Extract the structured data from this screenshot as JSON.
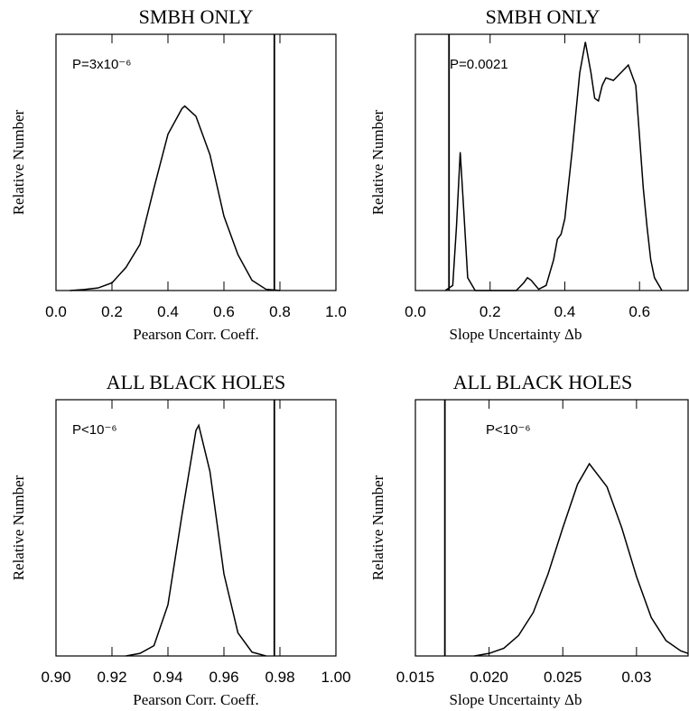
{
  "chart_data": [
    {
      "type": "line",
      "title": "SMBH ONLY",
      "xlabel": "Pearson Corr. Coeff.",
      "ylabel": "Relative Number",
      "annotation": "P=3x10⁻⁶",
      "x": [
        0.05,
        0.1,
        0.15,
        0.2,
        0.25,
        0.3,
        0.35,
        0.4,
        0.45,
        0.46,
        0.5,
        0.55,
        0.6,
        0.65,
        0.7,
        0.75,
        0.8
      ],
      "values": [
        0,
        0.004,
        0.01,
        0.03,
        0.09,
        0.18,
        0.4,
        0.61,
        0.71,
        0.72,
        0.68,
        0.53,
        0.29,
        0.14,
        0.04,
        0.005,
        0
      ],
      "color": "#000000",
      "vline": 0.78,
      "xlim": [
        0,
        1.0
      ],
      "ylim": [
        0,
        1
      ],
      "xticks": [
        {
          "value": 0,
          "label": "0.0"
        },
        0.2,
        0.4,
        0.6,
        0.8,
        {
          "value": 1,
          "label": "1.0"
        }
      ]
    },
    {
      "type": "line",
      "title": "SMBH ONLY",
      "xlabel": "Slope Uncertainty Δb",
      "ylabel": "Relative Number",
      "annotation": "P=0.0021",
      "x": [
        0.08,
        0.1,
        0.11,
        0.12,
        0.13,
        0.14,
        0.16,
        0.27,
        0.29,
        0.3,
        0.31,
        0.33,
        0.35,
        0.37,
        0.38,
        0.39,
        0.4,
        0.42,
        0.44,
        0.455,
        0.47,
        0.48,
        0.49,
        0.5,
        0.51,
        0.53,
        0.55,
        0.57,
        0.59,
        0.6,
        0.61,
        0.62,
        0.63,
        0.64,
        0.66
      ],
      "values": [
        0,
        0.02,
        0.25,
        0.54,
        0.3,
        0.05,
        0,
        0,
        0.03,
        0.05,
        0.04,
        0.005,
        0.02,
        0.12,
        0.2,
        0.22,
        0.28,
        0.55,
        0.85,
        0.97,
        0.85,
        0.75,
        0.74,
        0.8,
        0.83,
        0.82,
        0.85,
        0.88,
        0.8,
        0.6,
        0.4,
        0.25,
        0.12,
        0.05,
        0
      ],
      "color": "#000000",
      "vline": 0.09,
      "xlim": [
        0,
        0.73
      ],
      "ylim": [
        0,
        1
      ],
      "xticks": [
        {
          "value": 0,
          "label": "0.0"
        },
        0.2,
        0.4,
        0.6
      ]
    },
    {
      "type": "line",
      "title": "ALL BLACK HOLES",
      "xlabel": "Pearson Corr. Coeff.",
      "ylabel": "Relative Number",
      "annotation": "P<10⁻⁶",
      "x": [
        0.925,
        0.93,
        0.935,
        0.94,
        0.945,
        0.95,
        0.951,
        0.955,
        0.96,
        0.965,
        0.97,
        0.975
      ],
      "values": [
        0,
        0.01,
        0.04,
        0.2,
        0.55,
        0.88,
        0.9,
        0.72,
        0.32,
        0.09,
        0.015,
        0
      ],
      "color": "#000000",
      "vline": 0.978,
      "xlim": [
        0.9,
        1.0
      ],
      "ylim": [
        0,
        1
      ],
      "xticks": [
        {
          "value": 0.9,
          "label": "0.90"
        },
        0.92,
        0.94,
        0.96,
        0.98,
        {
          "value": 1,
          "label": "1.00"
        }
      ]
    },
    {
      "type": "line",
      "title": "ALL BLACK HOLES",
      "xlabel": "Slope Uncertainty Δb",
      "ylabel": "Relative Number",
      "annotation": "P<10⁻⁶",
      "x": [
        0.019,
        0.02,
        0.021,
        0.022,
        0.023,
        0.024,
        0.025,
        0.026,
        0.0268,
        0.028,
        0.029,
        0.03,
        0.031,
        0.032,
        0.033,
        0.0335
      ],
      "values": [
        0,
        0.01,
        0.03,
        0.08,
        0.17,
        0.32,
        0.5,
        0.67,
        0.75,
        0.66,
        0.5,
        0.31,
        0.15,
        0.06,
        0.02,
        0.01
      ],
      "color": "#000000",
      "vline": 0.017,
      "xlim": [
        0.015,
        0.0335
      ],
      "ylim": [
        0,
        1
      ],
      "xticks": [
        0.015,
        {
          "value": 0.02,
          "label": "0.020"
        },
        0.025,
        0.03
      ]
    }
  ]
}
